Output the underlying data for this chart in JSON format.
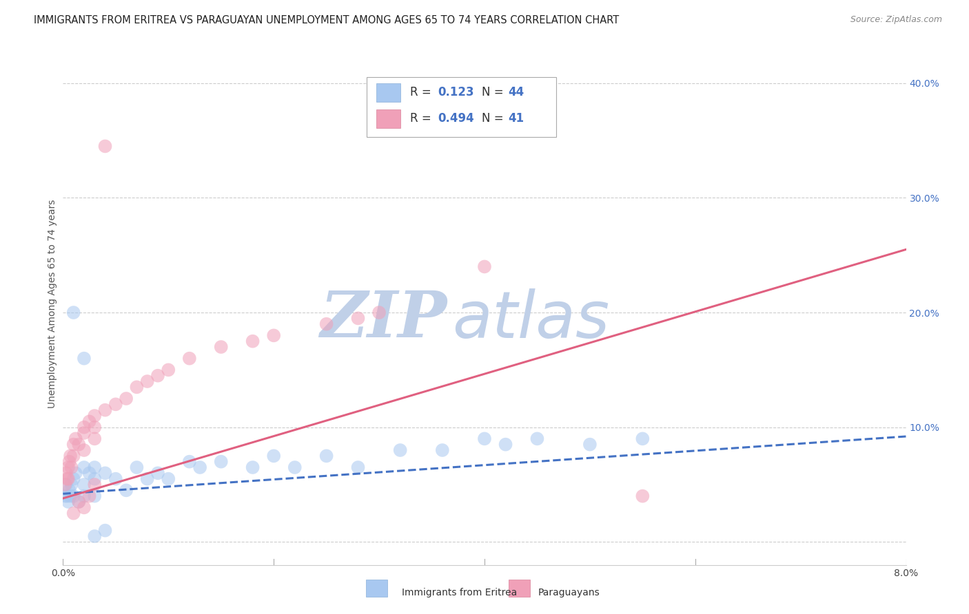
{
  "title": "IMMIGRANTS FROM ERITREA VS PARAGUAYAN UNEMPLOYMENT AMONG AGES 65 TO 74 YEARS CORRELATION CHART",
  "source": "Source: ZipAtlas.com",
  "ylabel": "Unemployment Among Ages 65 to 74 years",
  "xlim": [
    0.0,
    0.08
  ],
  "ylim": [
    -0.02,
    0.435
  ],
  "right_ytick_vals": [
    0.0,
    0.1,
    0.2,
    0.3,
    0.4
  ],
  "right_ytick_labels": [
    "",
    "10.0%",
    "20.0%",
    "30.0%",
    "40.0%"
  ],
  "blue_series": {
    "name": "Immigrants from Eritrea",
    "color": "#a8c8f0",
    "line_color": "#4472c4",
    "R": 0.123,
    "N": 44,
    "x": [
      0.0002,
      0.0003,
      0.0004,
      0.0005,
      0.0006,
      0.0007,
      0.0008,
      0.001,
      0.001,
      0.0012,
      0.0015,
      0.002,
      0.002,
      0.002,
      0.0025,
      0.003,
      0.003,
      0.003,
      0.004,
      0.005,
      0.006,
      0.007,
      0.008,
      0.009,
      0.01,
      0.012,
      0.013,
      0.015,
      0.018,
      0.02,
      0.022,
      0.025,
      0.028,
      0.032,
      0.036,
      0.04,
      0.042,
      0.045,
      0.05,
      0.055,
      0.001,
      0.002,
      0.003,
      0.004
    ],
    "y": [
      0.04,
      0.05,
      0.04,
      0.035,
      0.045,
      0.04,
      0.05,
      0.055,
      0.04,
      0.06,
      0.035,
      0.065,
      0.05,
      0.04,
      0.06,
      0.065,
      0.055,
      0.04,
      0.06,
      0.055,
      0.045,
      0.065,
      0.055,
      0.06,
      0.055,
      0.07,
      0.065,
      0.07,
      0.065,
      0.075,
      0.065,
      0.075,
      0.065,
      0.08,
      0.08,
      0.09,
      0.085,
      0.09,
      0.085,
      0.09,
      0.2,
      0.16,
      0.005,
      0.01
    ],
    "trend_x": [
      0.0,
      0.08
    ],
    "trend_y": [
      0.042,
      0.092
    ],
    "dashed": true
  },
  "pink_series": {
    "name": "Paraguayans",
    "color": "#f0a0b8",
    "line_color": "#e06080",
    "R": 0.494,
    "N": 41,
    "x": [
      0.0002,
      0.0003,
      0.0004,
      0.0005,
      0.0006,
      0.0007,
      0.0008,
      0.001,
      0.001,
      0.0012,
      0.0015,
      0.002,
      0.002,
      0.002,
      0.0025,
      0.003,
      0.003,
      0.003,
      0.004,
      0.005,
      0.006,
      0.007,
      0.008,
      0.009,
      0.01,
      0.012,
      0.015,
      0.018,
      0.02,
      0.025,
      0.028,
      0.03,
      0.04,
      0.0005,
      0.001,
      0.0015,
      0.002,
      0.0025,
      0.003,
      0.055,
      0.004
    ],
    "y": [
      0.05,
      0.06,
      0.055,
      0.065,
      0.07,
      0.075,
      0.065,
      0.075,
      0.085,
      0.09,
      0.085,
      0.1,
      0.095,
      0.08,
      0.105,
      0.11,
      0.1,
      0.09,
      0.115,
      0.12,
      0.125,
      0.135,
      0.14,
      0.145,
      0.15,
      0.16,
      0.17,
      0.175,
      0.18,
      0.19,
      0.195,
      0.2,
      0.24,
      0.055,
      0.025,
      0.035,
      0.03,
      0.04,
      0.05,
      0.04,
      0.345
    ],
    "trend_x": [
      0.0,
      0.08
    ],
    "trend_y": [
      0.038,
      0.255
    ],
    "dashed": false
  },
  "watermark_zip_color": "#c0d0e8",
  "watermark_atlas_color": "#c0d0e8",
  "background_color": "#ffffff",
  "grid_color": "#cccccc"
}
